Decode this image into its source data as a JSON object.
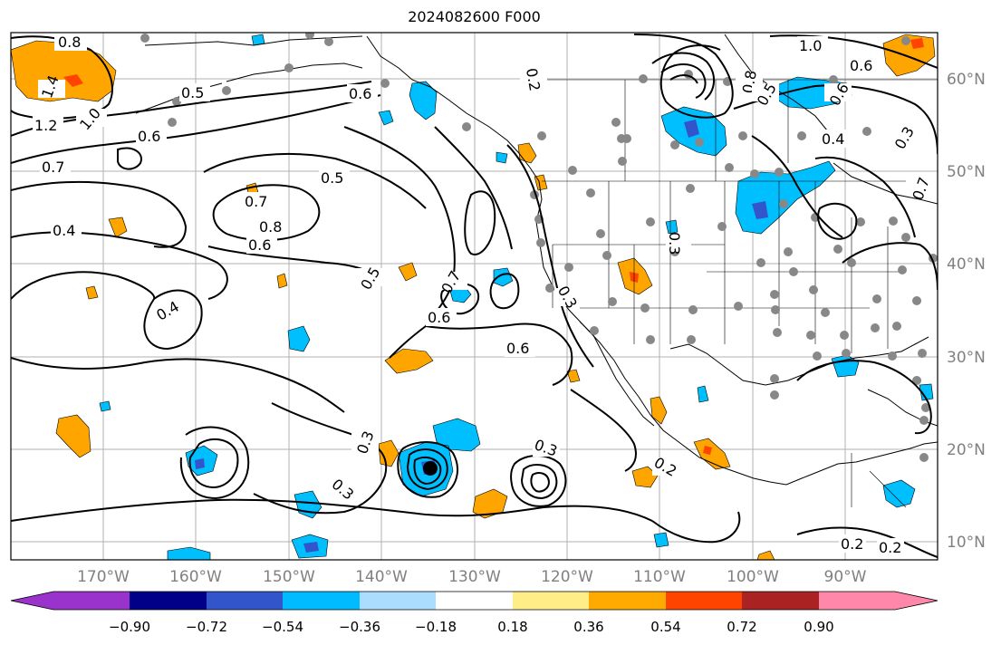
{
  "title": "2024082600 F000",
  "map": {
    "lon_labels": [
      "170°W",
      "160°W",
      "150°W",
      "140°W",
      "130°W",
      "120°W",
      "110°W",
      "100°W",
      "90°W"
    ],
    "lat_labels": [
      "60°N",
      "50°N",
      "40°N",
      "30°N",
      "20°N",
      "10°N"
    ],
    "contour_labels": [
      "0.8",
      "1.4",
      "1.2",
      "1.0",
      "0.6",
      "0.7",
      "0.4",
      "0.5",
      "0.7",
      "0.8",
      "0.6",
      "0.5",
      "0.6",
      "0.4",
      "0.5",
      "0.7",
      "0.6",
      "0.6",
      "0.3",
      "0.3",
      "0.2",
      "0.3",
      "0.2",
      "0.2",
      "0.3",
      "1.0",
      "0.6",
      "0.8",
      "0.5",
      "0.6",
      "0.4",
      "0.3",
      "0.7",
      "0.3",
      "0.2"
    ]
  },
  "colorbar": {
    "ticks": [
      "−0.90",
      "−0.72",
      "−0.54",
      "−0.36",
      "−0.18",
      "0.18",
      "0.36",
      "0.54",
      "0.72",
      "0.90"
    ],
    "colors": [
      "#9933cc",
      "#000088",
      "#3355cc",
      "#00bbff",
      "#aaddff",
      "#ffffff",
      "#ffee88",
      "#ffaa00",
      "#ff4400",
      "#aa2222",
      "#ff88aa"
    ]
  },
  "colors": {
    "positive_fill": "#ffa500",
    "negative_fill": "#00bfff",
    "grid": "#b0b0b0",
    "dots": "#888888"
  }
}
